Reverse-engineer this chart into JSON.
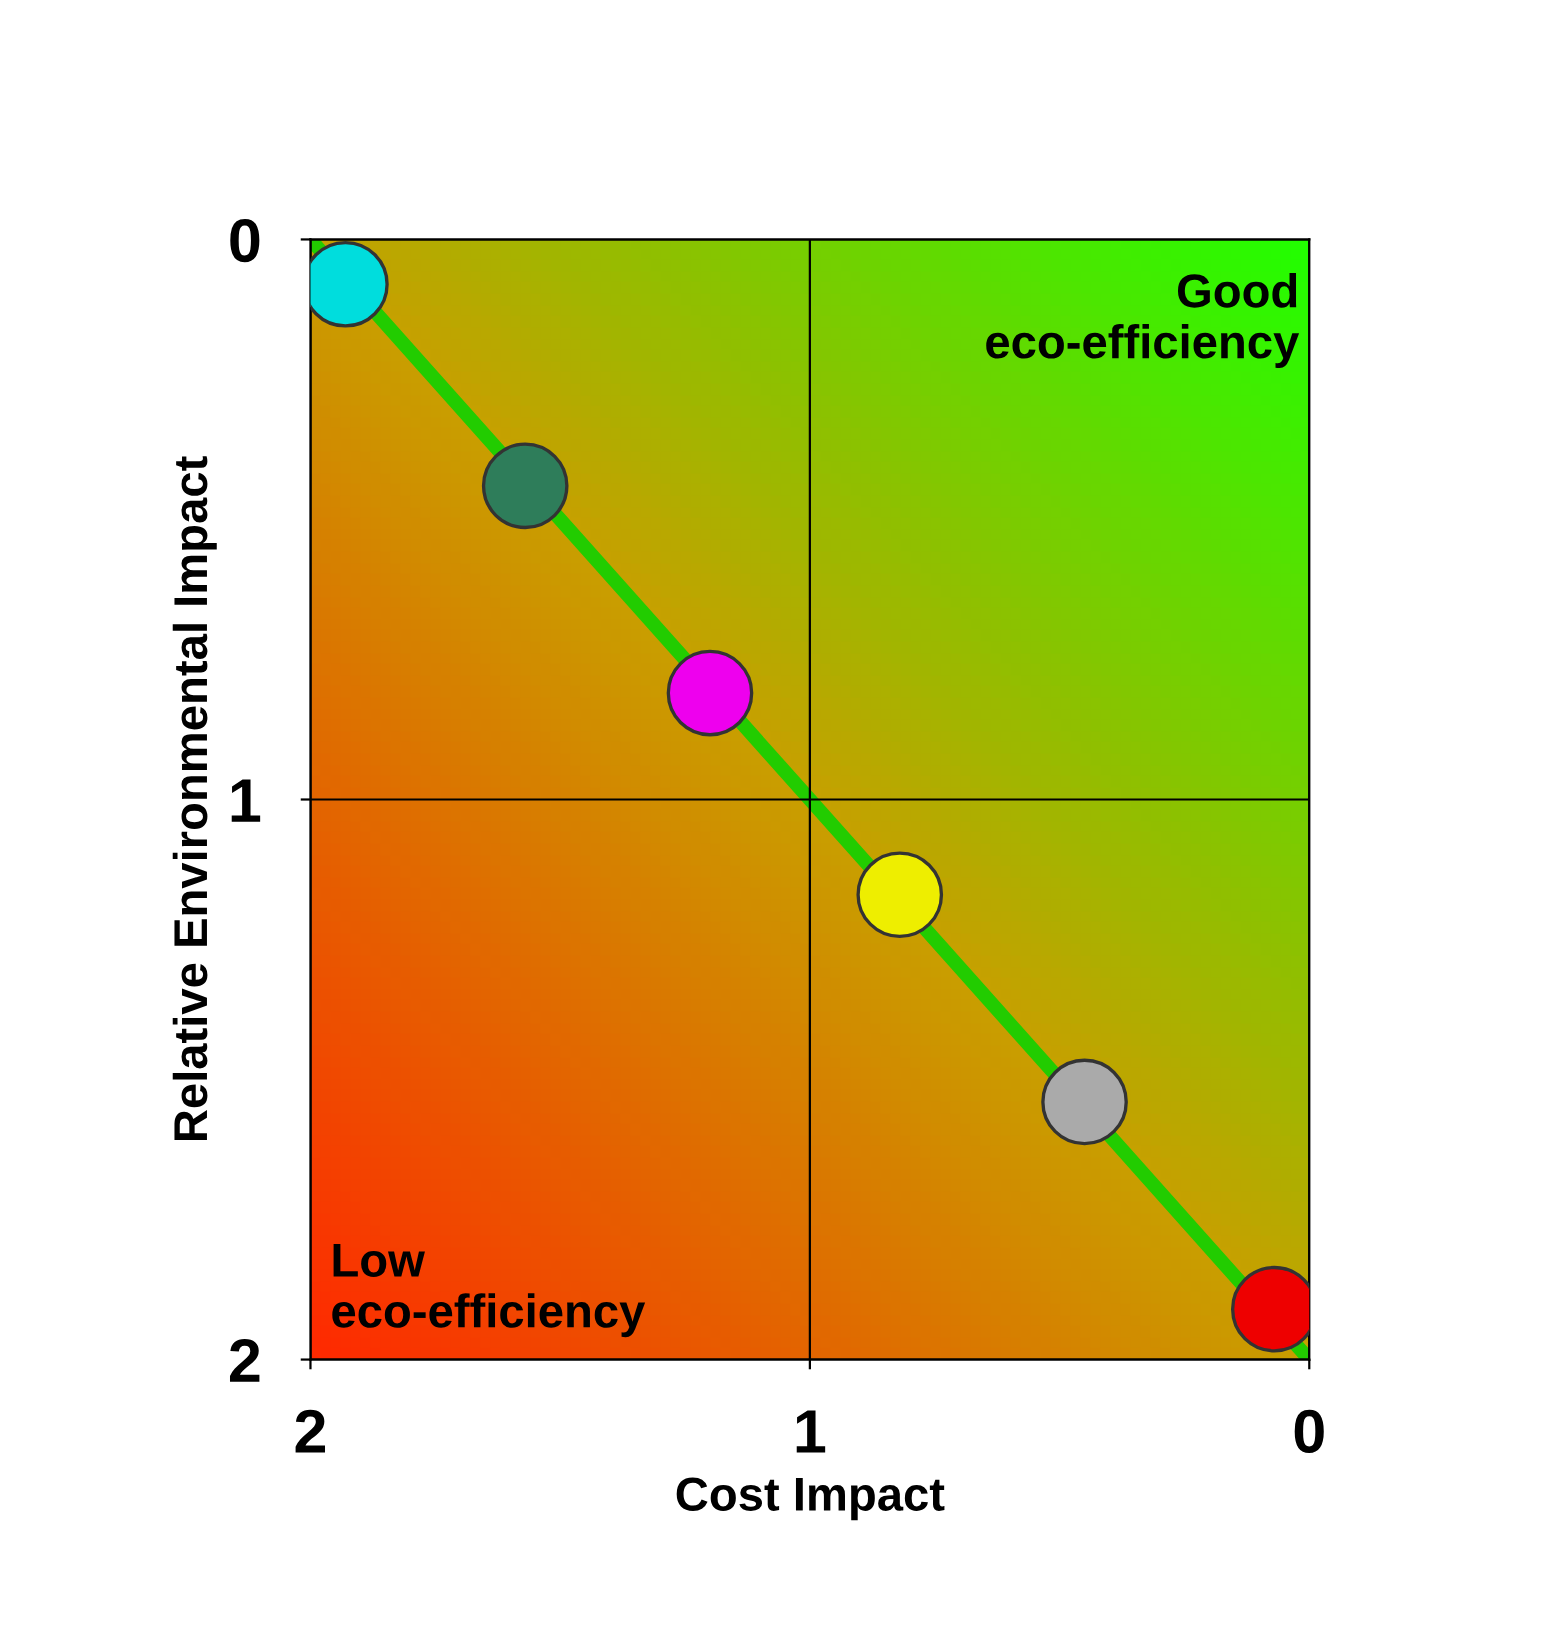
{
  "chart_data": {
    "type": "scatter",
    "xlabel": "Cost Impact",
    "ylabel": "Relative Environmental Impact",
    "xlim": [
      2,
      0
    ],
    "ylim": [
      2,
      0
    ],
    "xticks": [
      2,
      1,
      0
    ],
    "yticks": [
      0,
      1,
      2
    ],
    "grid": true,
    "annotations": [
      "Good\neco-efficiency",
      "Low\neco-efficiency"
    ],
    "series": [
      {
        "type": "line",
        "color": "#22cc00",
        "x": [
          2,
          0
        ],
        "values": [
          0,
          2
        ]
      },
      {
        "marker": "circle",
        "x": [
          1.93,
          1.57,
          1.2,
          0.82,
          0.45,
          0.07
        ],
        "values": [
          0.08,
          0.44,
          0.81,
          1.17,
          1.54,
          1.91
        ],
        "colors": [
          "#00dddd",
          "#2e7d5a",
          "#ee00ee",
          "#eeee00",
          "#aaaaaa",
          "#ee0000"
        ]
      }
    ]
  }
}
